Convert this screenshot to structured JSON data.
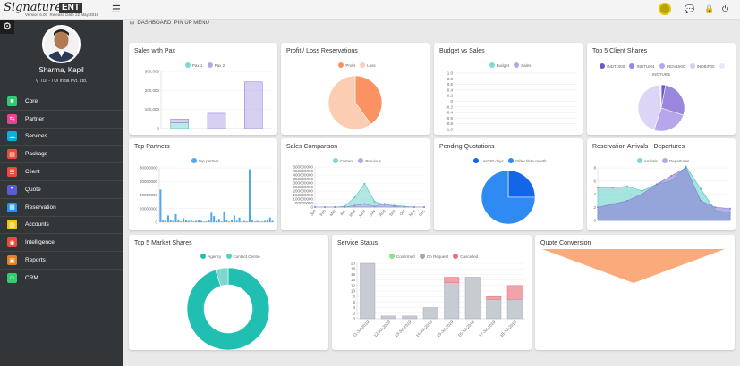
{
  "app": {
    "logo": "Signature",
    "logo_badge": "ENT",
    "version": "Version 6.00",
    "release": "Release Date 22 May 2019"
  },
  "user": {
    "name": "Sharma, Kapil",
    "company": "TUI - TUI India Pvt. Ltd."
  },
  "nav": [
    {
      "label": "Core",
      "color": "#2ecc71",
      "icon": "■"
    },
    {
      "label": "Partner",
      "color": "#e84393",
      "icon": "⇆"
    },
    {
      "label": "Services",
      "color": "#00b4d8",
      "icon": "☁"
    },
    {
      "label": "Package",
      "color": "#e74c3c",
      "icon": "▤"
    },
    {
      "label": "Client",
      "color": "#e74c3c",
      "icon": "☰"
    },
    {
      "label": "Quote",
      "color": "#5b5bd6",
      "icon": "❝"
    },
    {
      "label": "Reservation",
      "color": "#1e90ff",
      "icon": "▦"
    },
    {
      "label": "Accounts",
      "color": "#f1c40f",
      "icon": "▥"
    },
    {
      "label": "Intelligence",
      "color": "#e74c3c",
      "icon": "◉"
    },
    {
      "label": "Reports",
      "color": "#e67e22",
      "icon": "▣"
    },
    {
      "label": "CRM",
      "color": "#2ecc71",
      "icon": "☺"
    }
  ],
  "breadcrumb": {
    "dashboard": "DASHBOARD",
    "pin": "PIN UP MENU"
  },
  "colors": {
    "teal": "#7fd9d2",
    "lavender": "#b7a7e6",
    "orange": "#fb9261",
    "peach": "#fbcdb3",
    "blue": "#2f8bf2",
    "darkblue": "#1565e8",
    "green": "#8be08b",
    "grey": "#9fa7b3",
    "red": "#e8707b"
  },
  "panels": {
    "sales_pax": {
      "title": "Sales with Pax"
    },
    "profit_loss": {
      "title": "Profit / Loss Reservations"
    },
    "budget_sales": {
      "title": "Budget vs Sales"
    },
    "top5_client": {
      "title": "Top 5 Client Shares"
    },
    "top_partners": {
      "title": "Top Partners"
    },
    "sales_comparison": {
      "title": "Sales Comparison"
    },
    "pending_quotes": {
      "title": "Pending Quotations"
    },
    "arrivals": {
      "title": "Reservation Arrivals - Departures"
    },
    "market_shares": {
      "title": "Top 5 Market Shares"
    },
    "service_status": {
      "title": "Service Status"
    },
    "quote_conversion": {
      "title": "Quote Conversion"
    }
  },
  "chart_data": [
    {
      "type": "bar",
      "title": "Sales with Pax",
      "categories": [
        "",
        "",
        ""
      ],
      "series": [
        {
          "name": "Pax 1",
          "values": [
            30000,
            0,
            0
          ]
        },
        {
          "name": "Pax 2",
          "values": [
            20000,
            80000,
            245000
          ]
        }
      ],
      "ylim": [
        0,
        300000
      ],
      "yticks": [
        "300,000",
        "200,000",
        "100,000",
        "0"
      ]
    },
    {
      "type": "pie",
      "title": "Profit / Loss Reservations",
      "labels": [
        "Profit",
        "Loss"
      ],
      "values": [
        40,
        60
      ]
    },
    {
      "type": "line",
      "title": "Budget vs Sales",
      "series": [
        {
          "name": "Budget",
          "values": []
        },
        {
          "name": "Sales",
          "values": []
        }
      ],
      "ylim": [
        -1,
        1
      ],
      "yticks": [
        "1.0",
        "0.8",
        "0.6",
        "0.4",
        "0.2",
        "0",
        "-0.2",
        "-0.4",
        "-0.6",
        "-0.8",
        "-1.0"
      ]
    },
    {
      "type": "pie",
      "title": "Top 5 Client Shares",
      "labels": [
        "INDTUI00",
        "INDTUI04",
        "INDV1500",
        "INDBIF00",
        "INDTUI05"
      ],
      "values": [
        3,
        27,
        25,
        44,
        1
      ]
    },
    {
      "type": "bar",
      "title": "Top Partners",
      "series": [
        {
          "name": "Top partner",
          "values": [
            48000000,
            4000000,
            2000000,
            10000000,
            3000000,
            2000000,
            12000000,
            4000000,
            1000000,
            6000000,
            3000000,
            2000000,
            4000000,
            1000000,
            2000000,
            4000000,
            2000000,
            1000000,
            1000000,
            3000000,
            14000000,
            9000000,
            2000000,
            5000000,
            1000000,
            16000000,
            3000000,
            1000000,
            4000000,
            10000000,
            2000000,
            7000000,
            1000000,
            2000000,
            1000000,
            78000000,
            3000000,
            1000000,
            2000000,
            1000000,
            1000000,
            2000000,
            3000000,
            7000000,
            2000000
          ]
        }
      ],
      "ylim": [
        0,
        80000000
      ],
      "yticks": [
        "80000000",
        "60000000",
        "40000000",
        "20000000",
        "0"
      ]
    },
    {
      "type": "area",
      "title": "Sales Comparison",
      "categories": [
        "Jan",
        "Feb",
        "Mar",
        "Apr",
        "May",
        "June",
        "July",
        "Aug",
        "Sep",
        "Oct",
        "Nov",
        "Dec"
      ],
      "series": [
        {
          "name": "Current",
          "values": [
            0,
            0,
            0,
            10000000,
            120000000,
            290000000,
            70000000,
            30000000,
            20000000,
            10000000,
            0,
            0
          ]
        },
        {
          "name": "Previous",
          "values": [
            0,
            0,
            0,
            0,
            20000000,
            40000000,
            10000000,
            40000000,
            10000000,
            0,
            0,
            0
          ]
        }
      ],
      "ylim": [
        0,
        500000000
      ],
      "yticks": [
        "500000000",
        "450000000",
        "400000000",
        "350000000",
        "300000000",
        "250000000",
        "200000000",
        "150000000",
        "100000000",
        "50000000",
        "0"
      ]
    },
    {
      "type": "pie",
      "title": "Pending Quotations",
      "labels": [
        "Last 30 days",
        "Older than month"
      ],
      "values": [
        25,
        75
      ]
    },
    {
      "type": "area",
      "title": "Reservation Arrivals - Departures",
      "series": [
        {
          "name": "Arrivals",
          "values": [
            5,
            5,
            5.2,
            4.5,
            5.5,
            6,
            8.2,
            4.8,
            1.5,
            1.2
          ]
        },
        {
          "name": "Departures",
          "values": [
            2,
            2.5,
            3,
            4,
            5.5,
            6.8,
            8,
            3,
            2,
            1.8
          ]
        }
      ],
      "ylim": [
        0,
        8
      ],
      "yticks": [
        "8",
        "6",
        "4",
        "2",
        "0"
      ]
    },
    {
      "type": "pie",
      "title": "Top 5 Market Shares",
      "labels": [
        "Agency",
        "Contact Centre"
      ],
      "values": [
        95,
        5
      ]
    },
    {
      "type": "bar",
      "title": "Service Status",
      "categories": [
        "11-Jul-2019",
        "12-Jul-2019",
        "13-Jul-2019",
        "14-Jul-2019",
        "15-Jul-2019",
        "16-Jul-2019",
        "17-Jul-2019",
        "18-Jul-2019"
      ],
      "series": [
        {
          "name": "Confirmed",
          "values": [
            0,
            0,
            0,
            0,
            0,
            0,
            0,
            0
          ]
        },
        {
          "name": "On Request",
          "values": [
            20,
            1,
            1,
            4,
            13,
            15,
            7,
            7
          ]
        },
        {
          "name": "Cancelled",
          "values": [
            0,
            0,
            0,
            0,
            2,
            0,
            1,
            5
          ]
        }
      ],
      "ylim": [
        0,
        20
      ],
      "yticks": [
        "20",
        "18",
        "16",
        "14",
        "12",
        "10",
        "8",
        "6",
        "4",
        "2",
        "0"
      ]
    },
    {
      "type": "funnel",
      "title": "Quote Conversion"
    }
  ]
}
